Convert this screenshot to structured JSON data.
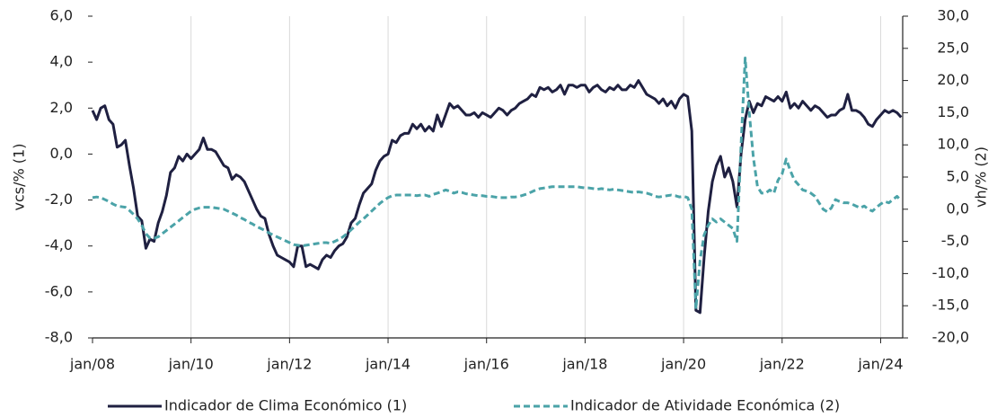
{
  "chart_data": {
    "type": "line",
    "y_label": "vcs/% (1)",
    "y2_label": "vh/% (2)",
    "categories": [
      "jan/08",
      null,
      null,
      null,
      null,
      null,
      null,
      null,
      null,
      null,
      null,
      null,
      null,
      null,
      null,
      null,
      null,
      null,
      null,
      null,
      null,
      null,
      null,
      null,
      "jan/10",
      null,
      null,
      null,
      null,
      null,
      null,
      null,
      null,
      null,
      null,
      null,
      null,
      null,
      null,
      null,
      null,
      null,
      null,
      null,
      null,
      null,
      null,
      null,
      "jan/12",
      null,
      null,
      null,
      null,
      null,
      null,
      null,
      null,
      null,
      null,
      null,
      null,
      null,
      null,
      null,
      null,
      null,
      null,
      null,
      null,
      null,
      null,
      null,
      "jan/14",
      null,
      null,
      null,
      null,
      null,
      null,
      null,
      null,
      null,
      null,
      null,
      null,
      null,
      null,
      null,
      null,
      null,
      null,
      null,
      null,
      null,
      null,
      null,
      "jan/16",
      null,
      null,
      null,
      null,
      null,
      null,
      null,
      null,
      null,
      null,
      null,
      null,
      null,
      null,
      null,
      null,
      null,
      null,
      null,
      null,
      null,
      null,
      null,
      "jan/18",
      null,
      null,
      null,
      null,
      null,
      null,
      null,
      null,
      null,
      null,
      null,
      null,
      null,
      null,
      null,
      null,
      null,
      null,
      null,
      null,
      null,
      null,
      null,
      "jan/20",
      null,
      null,
      null,
      null,
      null,
      null,
      null,
      null,
      null,
      null,
      null,
      null,
      null,
      null,
      null,
      null,
      null,
      null,
      null,
      null,
      null,
      null,
      null,
      "jan/22",
      null,
      null,
      null,
      null,
      null,
      null,
      null,
      null,
      null,
      null,
      null,
      null,
      null,
      null,
      null,
      null,
      null,
      null,
      null,
      null,
      null,
      null,
      null,
      "jan/24",
      null,
      null,
      null,
      null,
      null
    ],
    "series": [
      {
        "name": "Indicador de Clima Económico (1)",
        "color": "#1f2041",
        "dash": false,
        "axis": "y",
        "values": [
          1.9,
          1.5,
          2.0,
          2.1,
          1.5,
          1.3,
          0.3,
          0.4,
          0.6,
          -0.5,
          -1.5,
          -2.7,
          -2.9,
          -4.1,
          -3.7,
          -3.8,
          -3.0,
          -2.5,
          -1.8,
          -0.8,
          -0.6,
          -0.1,
          -0.3,
          0.0,
          -0.2,
          0.0,
          0.2,
          0.7,
          0.2,
          0.2,
          0.1,
          -0.2,
          -0.5,
          -0.6,
          -1.1,
          -0.9,
          -1.0,
          -1.2,
          -1.6,
          -2.0,
          -2.4,
          -2.7,
          -2.8,
          -3.5,
          -4.0,
          -4.4,
          -4.5,
          -4.6,
          -4.7,
          -4.9,
          -4.0,
          -4.0,
          -4.9,
          -4.8,
          -4.9,
          -5.0,
          -4.6,
          -4.4,
          -4.5,
          -4.2,
          -4.0,
          -3.9,
          -3.6,
          -3.0,
          -2.8,
          -2.2,
          -1.7,
          -1.5,
          -1.3,
          -0.7,
          -0.3,
          -0.1,
          0.0,
          0.6,
          0.5,
          0.8,
          0.9,
          0.9,
          1.3,
          1.1,
          1.3,
          1.0,
          1.2,
          1.0,
          1.7,
          1.2,
          1.7,
          2.2,
          2.0,
          2.1,
          1.9,
          1.7,
          1.7,
          1.8,
          1.6,
          1.8,
          1.7,
          1.6,
          1.8,
          2.0,
          1.9,
          1.7,
          1.9,
          2.0,
          2.2,
          2.3,
          2.4,
          2.6,
          2.5,
          2.9,
          2.8,
          2.9,
          2.7,
          2.8,
          3.0,
          2.6,
          3.0,
          3.0,
          2.9,
          3.0,
          3.0,
          2.7,
          2.9,
          3.0,
          2.8,
          2.7,
          2.9,
          2.8,
          3.0,
          2.8,
          2.8,
          3.0,
          2.9,
          3.2,
          2.9,
          2.6,
          2.5,
          2.4,
          2.2,
          2.4,
          2.1,
          2.3,
          2.0,
          2.4,
          2.6,
          2.5,
          1.0,
          -6.8,
          -6.9,
          -4.5,
          -2.5,
          -1.2,
          -0.5,
          -0.1,
          -1.0,
          -0.6,
          -1.2,
          -2.3,
          0.0,
          1.5,
          2.3,
          1.8,
          2.2,
          2.1,
          2.5,
          2.4,
          2.3,
          2.5,
          2.3,
          2.7,
          2.0,
          2.2,
          2.0,
          2.3,
          2.1,
          1.9,
          2.1,
          2.0,
          1.8,
          1.6,
          1.7,
          1.7,
          1.9,
          2.0,
          2.6,
          1.9,
          1.9,
          1.8,
          1.6,
          1.3,
          1.2,
          1.5,
          1.7,
          1.9,
          1.8,
          1.9,
          1.8,
          1.6
        ]
      },
      {
        "name": "Indicador de Atividade Económica (2)",
        "color": "#4ba3a8",
        "dash": true,
        "axis": "y2",
        "values": [
          1.8,
          1.9,
          1.8,
          1.5,
          1.2,
          0.8,
          0.5,
          0.4,
          0.3,
          -0.2,
          -0.8,
          -1.5,
          -2.5,
          -3.8,
          -4.5,
          -4.5,
          -4.3,
          -3.8,
          -3.3,
          -2.8,
          -2.3,
          -1.8,
          -1.3,
          -0.8,
          -0.3,
          0.0,
          0.2,
          0.3,
          0.3,
          0.3,
          0.2,
          0.1,
          0.0,
          -0.3,
          -0.6,
          -0.9,
          -1.3,
          -1.6,
          -2.0,
          -2.3,
          -2.7,
          -3.0,
          -3.3,
          -3.7,
          -4.0,
          -4.3,
          -4.6,
          -4.9,
          -5.2,
          -5.5,
          -5.6,
          -5.7,
          -5.6,
          -5.5,
          -5.4,
          -5.3,
          -5.2,
          -5.2,
          -5.3,
          -5.0,
          -4.7,
          -4.3,
          -3.8,
          -3.2,
          -2.6,
          -2.0,
          -1.5,
          -0.9,
          -0.3,
          0.3,
          0.9,
          1.4,
          1.8,
          2.1,
          2.2,
          2.2,
          2.2,
          2.2,
          2.2,
          2.1,
          2.2,
          2.2,
          2.0,
          2.3,
          2.5,
          2.7,
          3.0,
          2.8,
          2.5,
          2.7,
          2.6,
          2.4,
          2.3,
          2.2,
          2.1,
          2.1,
          2.0,
          2.0,
          1.9,
          1.8,
          1.8,
          1.8,
          1.9,
          1.9,
          2.0,
          2.2,
          2.4,
          2.7,
          3.0,
          3.2,
          3.3,
          3.4,
          3.5,
          3.5,
          3.5,
          3.5,
          3.5,
          3.5,
          3.5,
          3.4,
          3.3,
          3.3,
          3.2,
          3.1,
          3.2,
          3.1,
          3.0,
          3.1,
          3.0,
          2.9,
          2.8,
          2.7,
          2.6,
          2.7,
          2.6,
          2.5,
          2.3,
          2.0,
          1.9,
          2.0,
          2.1,
          2.2,
          2.1,
          1.9,
          2.0,
          1.8,
          0.0,
          -15.5,
          -8.0,
          -4.0,
          -2.5,
          -1.5,
          -2.0,
          -1.5,
          -2.0,
          -2.5,
          -3.0,
          -5.0,
          10.0,
          23.5,
          15.0,
          8.0,
          3.5,
          2.5,
          2.5,
          3.0,
          2.5,
          4.5,
          5.5,
          7.8,
          6.0,
          4.5,
          3.8,
          3.0,
          2.8,
          2.5,
          2.0,
          1.0,
          0.0,
          -0.4,
          0.2,
          1.5,
          1.2,
          1.0,
          1.0,
          0.8,
          0.5,
          0.2,
          0.5,
          0.0,
          -0.3,
          0.3,
          0.8,
          1.2,
          1.0,
          1.5,
          2.0,
          1.3
        ]
      }
    ],
    "ylim": [
      -8,
      6
    ],
    "yticks": [
      {
        "value": -8,
        "label": "-8,0"
      },
      {
        "value": -6,
        "label": "-6,0"
      },
      {
        "value": -4,
        "label": "-4,0"
      },
      {
        "value": -2,
        "label": "-2,0"
      },
      {
        "value": 0,
        "label": "0,0"
      },
      {
        "value": 2,
        "label": "2,0"
      },
      {
        "value": 4,
        "label": "4,0"
      },
      {
        "value": 6,
        "label": "6,0"
      }
    ],
    "y2lim": [
      -20,
      30
    ],
    "y2ticks": [
      {
        "value": -20,
        "label": "-20,0"
      },
      {
        "value": -15,
        "label": "-15,0"
      },
      {
        "value": -10,
        "label": "-10,0"
      },
      {
        "value": -5,
        "label": "-5,0"
      },
      {
        "value": 0,
        "label": "0,0"
      },
      {
        "value": 5,
        "label": "5,0"
      },
      {
        "value": 10,
        "label": "10,0"
      },
      {
        "value": 15,
        "label": "15,0"
      },
      {
        "value": 20,
        "label": "20,0"
      },
      {
        "value": 25,
        "label": "25,0"
      },
      {
        "value": 30,
        "label": "30,0"
      }
    ],
    "grid": true,
    "legend": "bottom"
  }
}
